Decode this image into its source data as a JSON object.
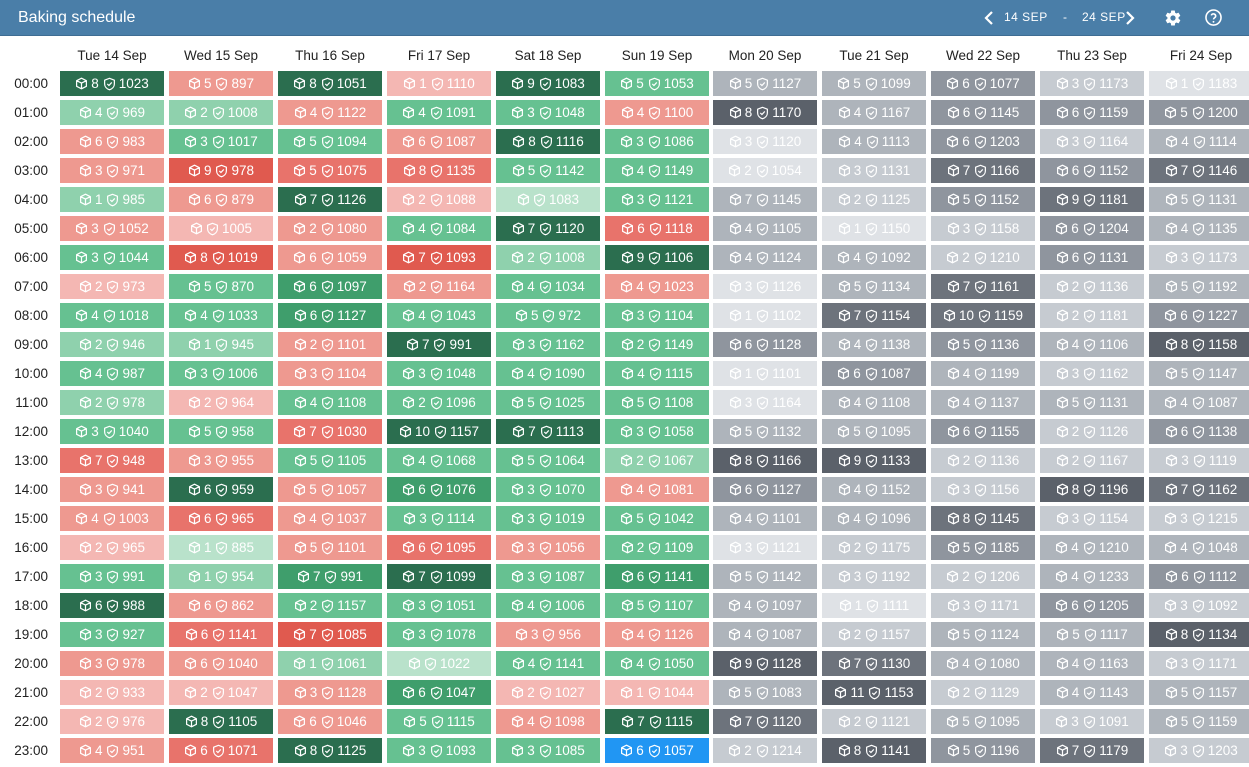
{
  "header": {
    "title": "Baking schedule",
    "date_from": "14 SEP",
    "date_sep": "-",
    "date_to": "24 SEP",
    "icons": [
      "chevron-left-icon",
      "chevron-right-icon",
      "gear-icon",
      "help-icon"
    ]
  },
  "days": [
    "Tue 14 Sep",
    "Wed 15 Sep",
    "Thu 16 Sep",
    "Fri 17 Sep",
    "Sat 18 Sep",
    "Sun 19 Sep",
    "Mon 20 Sep",
    "Tue 21 Sep",
    "Wed 22 Sep",
    "Thu 23 Sep",
    "Fri 24 Sep"
  ],
  "hours": [
    "00:00",
    "01:00",
    "02:00",
    "03:00",
    "04:00",
    "05:00",
    "06:00",
    "07:00",
    "08:00",
    "09:00",
    "10:00",
    "11:00",
    "12:00",
    "13:00",
    "14:00",
    "15:00",
    "16:00",
    "17:00",
    "18:00",
    "19:00",
    "20:00",
    "21:00",
    "22:00",
    "23:00"
  ],
  "legend_colors": {
    "cool_scale": [
      "#f4b7b3",
      "#ee9990",
      "#e8736b",
      "#e0574d",
      "#d8443a"
    ],
    "good_scale": [
      "#b9e2cb",
      "#8fd1ad",
      "#6cc396",
      "#4aa877",
      "#2e7a56",
      "#245f43"
    ],
    "future_scale": [
      "#e1e3e7",
      "#c8ccd2",
      "#b1b6bd",
      "#8e949d",
      "#6a7079",
      "#575d66"
    ],
    "selected": "#2196f3"
  },
  "cells": [
    [
      "r:8:1023:dg",
      "o:5:897:r2",
      "r:8:1051:dg",
      "o:1:1110:r1",
      "r:9:1083:dg",
      "r:5:1053:g3",
      "f:5:1127:f3",
      "f:5:1099:f3",
      "f:6:1077:f4",
      "f:3:1173:f2",
      "f:1:1183:f1"
    ],
    [
      "r:4:969:g2",
      "o:2:1008:g2",
      "r:4:1122:r2",
      "r:4:1091:g3",
      "r:3:1048:g3",
      "o:4:1100:r2",
      "f:8:1170:f6",
      "f:4:1167:f3",
      "f:6:1145:f4",
      "f:6:1159:f4",
      "f:5:1200:f4"
    ],
    [
      "o:6:983:r2",
      "r:3:1017:g3",
      "r:5:1094:g3",
      "o:6:1087:r2",
      "r:8:1116:dg",
      "r:3:1086:g3",
      "f:3:1120:f1",
      "f:4:1113:f3",
      "f:6:1203:f4",
      "f:3:1164:f2",
      "f:4:1114:f3"
    ],
    [
      "o:3:971:r2",
      "r:9:978:r4",
      "o:5:1075:r3",
      "o:8:1135:r3",
      "r:5:1142:g3",
      "r:4:1149:g3",
      "f:2:1054:f1",
      "f:3:1131:f2",
      "f:7:1166:f5",
      "f:6:1152:f4",
      "f:7:1146:f5"
    ],
    [
      "r:1:985:g2",
      "o:6:879:r2",
      "r:7:1126:dg",
      "o:2:1088:r1",
      "o::1083:g1",
      "r:3:1121:g3",
      "f:7:1145:f3",
      "f:2:1125:f2",
      "f:5:1152:f4",
      "f:9:1181:f5",
      "f:5:1131:f3"
    ],
    [
      "o:3:1052:r2",
      "o::1005:r1",
      "o:2:1080:r2",
      "r:4:1084:g3",
      "r:7:1120:dg",
      "o:6:1118:r3",
      "f:4:1105:f3",
      "f:1:1150:f1",
      "f:3:1158:f2",
      "f:6:1204:f4",
      "f:4:1135:f3"
    ],
    [
      "r:3:1044:g3",
      "r:8:1019:r4",
      "o:6:1059:r2",
      "o:7:1093:r4",
      "r:2:1008:g2",
      "r:9:1106:dg",
      "f:4:1124:f3",
      "f:4:1092:f3",
      "f:2:1210:f2",
      "f:6:1131:f4",
      "f:3:1173:f2"
    ],
    [
      "o:2:973:r1",
      "r:5:870:g3",
      "r:6:1097:g4",
      "o:2:1164:r2",
      "r:4:1034:g3",
      "o:4:1023:r2",
      "f:3:1126:f1",
      "f:5:1134:f3",
      "f:7:1161:f5",
      "f:2:1136:f2",
      "f:5:1192:f3"
    ],
    [
      "r:4:1018:g3",
      "r:4:1033:g3",
      "r:6:1127:g4",
      "r:4:1043:g3",
      "r:5:972:g3",
      "r:3:1104:g3",
      "f:1:1102:f1",
      "f:7:1154:f5",
      "f:10:1159:f5",
      "f:2:1181:f2",
      "f:6:1227:f4"
    ],
    [
      "r:2:946:g2",
      "r:1:945:g2",
      "o:2:1101:r2",
      "r:7:991:dg",
      "r:3:1162:g3",
      "r:2:1149:g3",
      "f:6:1128:f4",
      "f:4:1138:f3",
      "f:5:1136:f4",
      "f:4:1106:f3",
      "f:8:1158:f6"
    ],
    [
      "r:4:987:g3",
      "r:3:1006:g3",
      "o:3:1104:r2",
      "r:3:1048:g3",
      "r:4:1090:g3",
      "r:4:1115:g3",
      "f:1:1101:f1",
      "f:6:1087:f4",
      "f:4:1199:f3",
      "f:3:1162:f2",
      "f:5:1147:f3"
    ],
    [
      "r:2:978:g2",
      "o:2:964:r1",
      "r:4:1108:g3",
      "r:2:1096:g3",
      "r:5:1025:g3",
      "r:5:1108:g3",
      "f:3:1164:f1",
      "f:4:1108:f3",
      "f:4:1137:f3",
      "f:5:1131:f3",
      "f:4:1087:f3"
    ],
    [
      "r:3:1040:g3",
      "r:5:958:g3",
      "o:7:1030:r3",
      "r:10:1157:dg",
      "r:7:1113:dg",
      "r:3:1058:g3",
      "f:5:1132:f3",
      "f:5:1095:f3",
      "f:6:1155:f4",
      "f:2:1126:f2",
      "f:6:1138:f4"
    ],
    [
      "o:7:948:r3",
      "o:3:955:r2",
      "r:5:1105:g3",
      "r:4:1068:g3",
      "r:5:1064:g3",
      "r:2:1067:g2",
      "f:8:1166:f6",
      "f:9:1133:f6",
      "f:2:1136:f2",
      "f:2:1167:f2",
      "f:3:1119:f2"
    ],
    [
      "o:3:941:r2",
      "r:6:959:dg",
      "o:5:1057:r2",
      "r:6:1076:g4",
      "r:3:1070:g3",
      "o:4:1081:r2",
      "f:6:1127:f4",
      "f:4:1152:f3",
      "f:3:1156:f2",
      "f:8:1196:f6",
      "f:7:1162:f5"
    ],
    [
      "o:4:1003:r2",
      "r:6:965:r3",
      "o:4:1037:r2",
      "r:3:1114:g3",
      "r:3:1019:g3",
      "r:5:1042:g3",
      "f:4:1101:f3",
      "f:4:1096:f3",
      "f:8:1145:f5",
      "f:3:1154:f2",
      "f:3:1215:f2"
    ],
    [
      "o:2:965:r1",
      "r:1:885:g1",
      "o:5:1101:r2",
      "o:6:1095:r3",
      "o:3:1056:r2",
      "r:2:1109:g3",
      "f:3:1121:f1",
      "f:2:1175:f2",
      "f:5:1185:f4",
      "f:4:1210:f3",
      "f:4:1048:f3"
    ],
    [
      "r:3:991:g3",
      "r:1:954:g2",
      "r:7:991:g4",
      "r:7:1099:dg",
      "r:3:1087:g3",
      "r:6:1141:g4",
      "f:5:1142:f3",
      "f:3:1192:f2",
      "f:2:1206:f2",
      "f:4:1233:f3",
      "f:6:1112:f4"
    ],
    [
      "r:6:988:dg",
      "o:6:862:r2",
      "r:2:1157:g3",
      "r:3:1051:g3",
      "r:4:1006:g3",
      "r:5:1107:g3",
      "f:4:1097:f3",
      "f:1:1111:f1",
      "f:3:1171:f2",
      "f:6:1205:f4",
      "f:3:1092:f2"
    ],
    [
      "r:3:927:g3",
      "r:6:1141:r3",
      "r:7:1085:r4",
      "r:3:1078:g3",
      "o:3:956:r2",
      "o:4:1126:r2",
      "f:4:1087:f3",
      "f:2:1157:f2",
      "f:5:1124:f3",
      "f:5:1117:f3",
      "f:8:1134:f6"
    ],
    [
      "o:3:978:r2",
      "o:6:1040:r2",
      "r:1:1061:g2",
      "o::1022:g1",
      "r:4:1141:g3",
      "r:4:1050:g3",
      "f:9:1128:f6",
      "f:7:1130:f5",
      "f:4:1080:f3",
      "f:4:1163:f3",
      "f:3:1171:f2"
    ],
    [
      "o:2:933:r1",
      "o:2:1047:r1",
      "o:3:1128:r2",
      "r:6:1047:g4",
      "o:2:1027:r1",
      "o:1:1044:r1",
      "f:5:1083:f3",
      "f:11:1153:f6",
      "f:2:1129:f2",
      "f:4:1143:f3",
      "f:5:1157:f3"
    ],
    [
      "o:2:976:r1",
      "r:8:1105:dg",
      "o:6:1046:r2",
      "r:5:1115:g3",
      "o:4:1098:r2",
      "r:7:1115:dg",
      "f:7:1120:f5",
      "f:2:1121:f2",
      "f:5:1095:f3",
      "f:3:1091:f2",
      "f:5:1159:f3"
    ],
    [
      "o:4:951:r2",
      "r:6:1071:r3",
      "r:8:1125:dg",
      "r:3:1093:g3",
      "r:3:1085:g3",
      "r:6:1057:sel",
      "f:2:1214:f2",
      "f:8:1141:f6",
      "f:5:1196:f4",
      "f:7:1179:f5",
      "f:3:1203:f2"
    ]
  ]
}
